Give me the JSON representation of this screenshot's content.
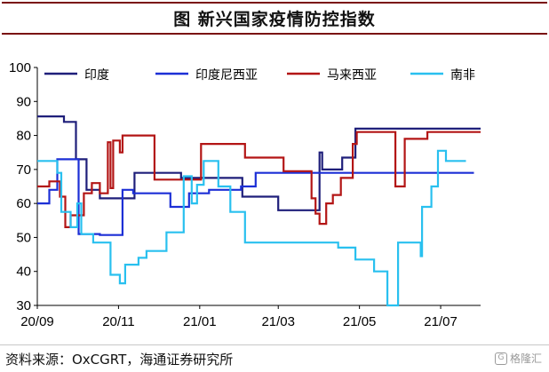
{
  "title": "图  新兴国家疫情防控指数",
  "source": "资料来源：OxCGRT，海通证券研究所",
  "watermark": "格隆汇",
  "chart_data": {
    "type": "line",
    "title": "新兴国家疫情防控指数",
    "xlabel": "",
    "ylabel": "",
    "ylim": [
      30,
      100
    ],
    "yticks": [
      30,
      40,
      50,
      60,
      70,
      80,
      90,
      100
    ],
    "xlim": [
      "2020-09-01",
      "2021-07-31"
    ],
    "xticks": [
      {
        "date": "2020-09-01",
        "label": "20/09"
      },
      {
        "date": "2020-11-01",
        "label": "20/11"
      },
      {
        "date": "2021-01-01",
        "label": "21/01"
      },
      {
        "date": "2021-03-01",
        "label": "21/03"
      },
      {
        "date": "2021-05-01",
        "label": "21/05"
      },
      {
        "date": "2021-07-01",
        "label": "21/07"
      }
    ],
    "grid": false,
    "legend_position": "top",
    "series": [
      {
        "name": "印度",
        "color": "#1f1f7a",
        "points": [
          [
            "2020-09-01",
            85.6
          ],
          [
            "2020-09-21",
            85.6
          ],
          [
            "2020-09-21",
            84
          ],
          [
            "2020-09-30",
            84
          ],
          [
            "2020-09-30",
            73
          ],
          [
            "2020-10-08",
            73
          ],
          [
            "2020-10-08",
            64
          ],
          [
            "2020-10-18",
            64
          ],
          [
            "2020-10-18",
            61.5
          ],
          [
            "2020-11-13",
            61.5
          ],
          [
            "2020-11-13",
            69
          ],
          [
            "2020-12-18",
            69
          ],
          [
            "2020-12-18",
            67.5
          ],
          [
            "2021-02-02",
            67.5
          ],
          [
            "2021-02-02",
            62
          ],
          [
            "2021-03-01",
            62
          ],
          [
            "2021-03-01",
            58
          ],
          [
            "2021-04-01",
            58
          ],
          [
            "2021-04-01",
            75
          ],
          [
            "2021-04-03",
            75
          ],
          [
            "2021-04-03",
            70
          ],
          [
            "2021-04-18",
            70
          ],
          [
            "2021-04-18",
            73.5
          ],
          [
            "2021-04-28",
            73.5
          ],
          [
            "2021-04-28",
            82
          ],
          [
            "2021-07-31",
            82
          ]
        ]
      },
      {
        "name": "印度尼西亚",
        "color": "#1c2fd6",
        "points": [
          [
            "2020-09-01",
            60
          ],
          [
            "2020-09-10",
            60
          ],
          [
            "2020-09-10",
            64
          ],
          [
            "2020-09-16",
            64
          ],
          [
            "2020-09-16",
            73
          ],
          [
            "2020-10-02",
            73
          ],
          [
            "2020-10-02",
            51
          ],
          [
            "2020-10-18",
            51
          ],
          [
            "2020-10-18",
            50.7
          ],
          [
            "2020-11-04",
            50.7
          ],
          [
            "2020-11-04",
            64
          ],
          [
            "2020-11-12",
            64
          ],
          [
            "2020-11-12",
            63
          ],
          [
            "2020-12-10",
            63
          ],
          [
            "2020-12-10",
            59
          ],
          [
            "2020-12-24",
            59
          ],
          [
            "2020-12-24",
            63
          ],
          [
            "2021-01-08",
            63
          ],
          [
            "2021-01-08",
            64
          ],
          [
            "2021-02-01",
            64
          ],
          [
            "2021-02-01",
            65
          ],
          [
            "2021-02-12",
            65
          ],
          [
            "2021-02-12",
            69
          ],
          [
            "2021-07-26",
            69
          ]
        ]
      },
      {
        "name": "马来西亚",
        "color": "#b31515",
        "points": [
          [
            "2020-09-01",
            65
          ],
          [
            "2020-09-10",
            65
          ],
          [
            "2020-09-10",
            66.5
          ],
          [
            "2020-09-18",
            66.5
          ],
          [
            "2020-09-18",
            62
          ],
          [
            "2020-09-22",
            62
          ],
          [
            "2020-09-22",
            53
          ],
          [
            "2020-09-26",
            53
          ],
          [
            "2020-09-26",
            56.5
          ],
          [
            "2020-10-06",
            56.5
          ],
          [
            "2020-10-06",
            63
          ],
          [
            "2020-10-12",
            63
          ],
          [
            "2020-10-12",
            66
          ],
          [
            "2020-10-18",
            66
          ],
          [
            "2020-10-18",
            63
          ],
          [
            "2020-10-24",
            63
          ],
          [
            "2020-10-24",
            78
          ],
          [
            "2020-10-26",
            78
          ],
          [
            "2020-10-26",
            64.5
          ],
          [
            "2020-10-28",
            64.5
          ],
          [
            "2020-10-28",
            78.5
          ],
          [
            "2020-11-02",
            78.5
          ],
          [
            "2020-11-02",
            75
          ],
          [
            "2020-11-04",
            75
          ],
          [
            "2020-11-04",
            80
          ],
          [
            "2020-11-28",
            80
          ],
          [
            "2020-11-28",
            67
          ],
          [
            "2021-01-02",
            67
          ],
          [
            "2021-01-02",
            77.5
          ],
          [
            "2021-02-04",
            77.5
          ],
          [
            "2021-02-04",
            73.5
          ],
          [
            "2021-03-05",
            73.5
          ],
          [
            "2021-03-05",
            69.5
          ],
          [
            "2021-03-26",
            69.5
          ],
          [
            "2021-03-26",
            61.5
          ],
          [
            "2021-03-29",
            61.5
          ],
          [
            "2021-03-29",
            57
          ],
          [
            "2021-04-01",
            57
          ],
          [
            "2021-04-01",
            54
          ],
          [
            "2021-04-06",
            54
          ],
          [
            "2021-04-06",
            60
          ],
          [
            "2021-04-11",
            60
          ],
          [
            "2021-04-11",
            62.5
          ],
          [
            "2021-04-17",
            62.5
          ],
          [
            "2021-04-17",
            67.5
          ],
          [
            "2021-04-26",
            67.5
          ],
          [
            "2021-04-26",
            77.5
          ],
          [
            "2021-04-29",
            77.5
          ],
          [
            "2021-04-29",
            81
          ],
          [
            "2021-05-28",
            81
          ],
          [
            "2021-05-28",
            65
          ],
          [
            "2021-06-04",
            65
          ],
          [
            "2021-06-04",
            79
          ],
          [
            "2021-06-21",
            79
          ],
          [
            "2021-06-21",
            81
          ],
          [
            "2021-07-31",
            81
          ]
        ]
      },
      {
        "name": "南非",
        "color": "#29c0ef",
        "points": [
          [
            "2020-09-01",
            72.5
          ],
          [
            "2020-09-16",
            72.5
          ],
          [
            "2020-09-16",
            69
          ],
          [
            "2020-09-19",
            69
          ],
          [
            "2020-09-19",
            57.5
          ],
          [
            "2020-09-26",
            57.5
          ],
          [
            "2020-09-26",
            53
          ],
          [
            "2020-10-01",
            53
          ],
          [
            "2020-10-01",
            60
          ],
          [
            "2020-10-04",
            60
          ],
          [
            "2020-10-04",
            51
          ],
          [
            "2020-10-13",
            51
          ],
          [
            "2020-10-13",
            48.5
          ],
          [
            "2020-10-26",
            48.5
          ],
          [
            "2020-10-26",
            39
          ],
          [
            "2020-11-02",
            39
          ],
          [
            "2020-11-02",
            36.5
          ],
          [
            "2020-11-06",
            36.5
          ],
          [
            "2020-11-06",
            42
          ],
          [
            "2020-11-16",
            42
          ],
          [
            "2020-11-16",
            44
          ],
          [
            "2020-11-22",
            44
          ],
          [
            "2020-11-22",
            46
          ],
          [
            "2020-12-07",
            46
          ],
          [
            "2020-12-07",
            51.5
          ],
          [
            "2020-12-20",
            51.5
          ],
          [
            "2020-12-20",
            68
          ],
          [
            "2020-12-26",
            68
          ],
          [
            "2020-12-26",
            60
          ],
          [
            "2020-12-30",
            60
          ],
          [
            "2020-12-30",
            65.5
          ],
          [
            "2021-01-04",
            65.5
          ],
          [
            "2021-01-04",
            72.5
          ],
          [
            "2021-01-15",
            72.5
          ],
          [
            "2021-01-15",
            65
          ],
          [
            "2021-01-24",
            65
          ],
          [
            "2021-01-24",
            57.5
          ],
          [
            "2021-02-04",
            57.5
          ],
          [
            "2021-02-04",
            48.5
          ],
          [
            "2021-04-15",
            48.5
          ],
          [
            "2021-04-15",
            47
          ],
          [
            "2021-04-28",
            47
          ],
          [
            "2021-04-28",
            43.5
          ],
          [
            "2021-05-12",
            43.5
          ],
          [
            "2021-05-12",
            40
          ],
          [
            "2021-05-22",
            40
          ],
          [
            "2021-05-22",
            30
          ],
          [
            "2021-05-30",
            30
          ],
          [
            "2021-05-30",
            48.5
          ],
          [
            "2021-06-16",
            48.5
          ],
          [
            "2021-06-16",
            44.5
          ],
          [
            "2021-06-17",
            44.5
          ],
          [
            "2021-06-17",
            59
          ],
          [
            "2021-06-24",
            59
          ],
          [
            "2021-06-24",
            65
          ],
          [
            "2021-06-29",
            65
          ],
          [
            "2021-06-29",
            75.5
          ],
          [
            "2021-07-05",
            75.5
          ],
          [
            "2021-07-05",
            72.5
          ],
          [
            "2021-07-20",
            72.5
          ]
        ]
      }
    ]
  }
}
